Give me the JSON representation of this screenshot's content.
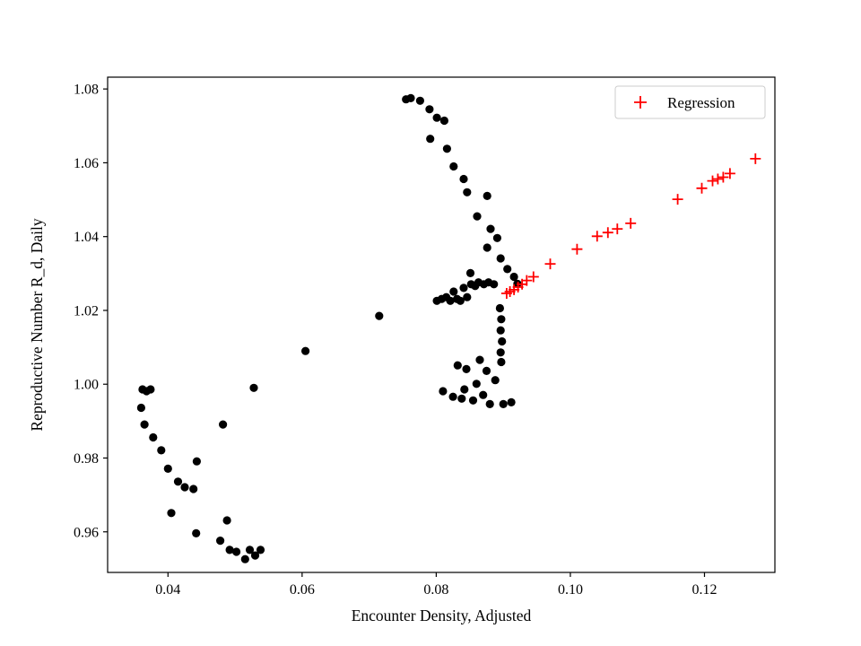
{
  "figure": {
    "background": "#ffffff",
    "accent_color": "#ff0000",
    "data_color": "#000000"
  },
  "chart_data": {
    "type": "scatter",
    "title": "",
    "xlabel": "Encounter Density, Adjusted",
    "ylabel": "Reproductive Number R_d, Daily",
    "xlim": [
      0.031,
      0.1305
    ],
    "ylim": [
      0.949,
      1.0832
    ],
    "x_ticks": [
      0.04,
      0.06,
      0.08,
      0.1,
      0.12
    ],
    "y_ticks": [
      0.96,
      0.98,
      1.0,
      1.02,
      1.04,
      1.06,
      1.08
    ],
    "grid": false,
    "legend": {
      "position": "upper right",
      "entries": [
        {
          "label": "Regression",
          "marker": "plus",
          "color": "#ff0000"
        }
      ]
    },
    "series": [
      {
        "name": "data",
        "marker": "circle",
        "color": "#000000",
        "points": [
          [
            0.0755,
            1.0772
          ],
          [
            0.0762,
            1.0775
          ],
          [
            0.0776,
            1.0768
          ],
          [
            0.079,
            1.0745
          ],
          [
            0.0801,
            1.0722
          ],
          [
            0.0812,
            1.0714
          ],
          [
            0.0791,
            1.0665
          ],
          [
            0.0816,
            1.0638
          ],
          [
            0.0826,
            1.059
          ],
          [
            0.0841,
            1.0556
          ],
          [
            0.0846,
            1.052
          ],
          [
            0.0876,
            1.051
          ],
          [
            0.0861,
            1.0455
          ],
          [
            0.0881,
            1.0421
          ],
          [
            0.0891,
            1.0396
          ],
          [
            0.0876,
            1.037
          ],
          [
            0.0896,
            1.0341
          ],
          [
            0.0906,
            1.0312
          ],
          [
            0.0916,
            1.0291
          ],
          [
            0.0921,
            1.0272
          ],
          [
            0.0851,
            1.0301
          ],
          [
            0.0801,
            1.0226
          ],
          [
            0.0808,
            1.0231
          ],
          [
            0.0815,
            1.0236
          ],
          [
            0.0821,
            1.0226
          ],
          [
            0.0826,
            1.0251
          ],
          [
            0.0831,
            1.0231
          ],
          [
            0.0836,
            1.0226
          ],
          [
            0.0841,
            1.0261
          ],
          [
            0.0846,
            1.0236
          ],
          [
            0.0852,
            1.0271
          ],
          [
            0.0858,
            1.0266
          ],
          [
            0.0863,
            1.0276
          ],
          [
            0.0871,
            1.0271
          ],
          [
            0.0878,
            1.0276
          ],
          [
            0.0886,
            1.0271
          ],
          [
            0.0715,
            1.0185
          ],
          [
            0.0605,
            1.009
          ],
          [
            0.0528,
            0.999
          ],
          [
            0.0895,
            1.0206
          ],
          [
            0.0897,
            1.0176
          ],
          [
            0.0896,
            1.0146
          ],
          [
            0.0898,
            1.0116
          ],
          [
            0.0896,
            1.0086
          ],
          [
            0.0897,
            1.006
          ],
          [
            0.0865,
            1.0066
          ],
          [
            0.0832,
            1.0051
          ],
          [
            0.0845,
            1.0041
          ],
          [
            0.0875,
            1.0036
          ],
          [
            0.0888,
            1.0011
          ],
          [
            0.086,
            1.0001
          ],
          [
            0.0842,
            0.9986
          ],
          [
            0.081,
            0.9981
          ],
          [
            0.0825,
            0.9966
          ],
          [
            0.0838,
            0.9961
          ],
          [
            0.0855,
            0.9956
          ],
          [
            0.087,
            0.9971
          ],
          [
            0.088,
            0.9946
          ],
          [
            0.09,
            0.9946
          ],
          [
            0.0912,
            0.9951
          ],
          [
            0.0362,
            0.9986
          ],
          [
            0.0368,
            0.9981
          ],
          [
            0.0374,
            0.9986
          ],
          [
            0.036,
            0.9936
          ],
          [
            0.0365,
            0.9891
          ],
          [
            0.0378,
            0.9856
          ],
          [
            0.039,
            0.9821
          ],
          [
            0.04,
            0.9771
          ],
          [
            0.0415,
            0.9736
          ],
          [
            0.0425,
            0.9721
          ],
          [
            0.0438,
            0.9716
          ],
          [
            0.0443,
            0.9791
          ],
          [
            0.0405,
            0.9651
          ],
          [
            0.0442,
            0.9596
          ],
          [
            0.0478,
            0.9576
          ],
          [
            0.0482,
            0.9891
          ],
          [
            0.0488,
            0.9631
          ],
          [
            0.0492,
            0.9551
          ],
          [
            0.0502,
            0.9546
          ],
          [
            0.0515,
            0.9526
          ],
          [
            0.0522,
            0.9551
          ],
          [
            0.053,
            0.9536
          ],
          [
            0.0538,
            0.9551
          ]
        ]
      },
      {
        "name": "Regression",
        "marker": "plus",
        "color": "#ff0000",
        "points": [
          [
            0.0905,
            1.0246
          ],
          [
            0.091,
            1.0251
          ],
          [
            0.0916,
            1.0256
          ],
          [
            0.0922,
            1.0263
          ],
          [
            0.0928,
            1.0271
          ],
          [
            0.0935,
            1.0281
          ],
          [
            0.0945,
            1.0291
          ],
          [
            0.097,
            1.0326
          ],
          [
            0.101,
            1.0366
          ],
          [
            0.104,
            1.0401
          ],
          [
            0.1056,
            1.0411
          ],
          [
            0.107,
            1.0421
          ],
          [
            0.109,
            1.0436
          ],
          [
            0.116,
            1.0501
          ],
          [
            0.1196,
            1.0531
          ],
          [
            0.1212,
            1.0551
          ],
          [
            0.122,
            1.0556
          ],
          [
            0.1228,
            1.0561
          ],
          [
            0.1238,
            1.0571
          ],
          [
            0.1276,
            1.0611
          ]
        ]
      }
    ]
  }
}
